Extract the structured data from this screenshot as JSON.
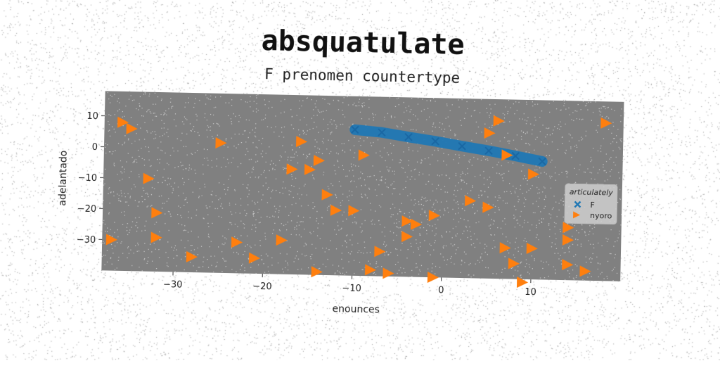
{
  "chart_data": {
    "type": "scatter",
    "title": "absquatulate",
    "subtitle": "F prenomen countertype",
    "xlabel": "enounces",
    "ylabel": "adelantado",
    "xlim": [
      -38,
      20
    ],
    "ylim": [
      -40,
      18
    ],
    "xticks": [
      -30,
      -20,
      -10,
      0,
      10
    ],
    "yticks": [
      10,
      0,
      -10,
      -20,
      -30
    ],
    "grid": false,
    "legend_position": "right",
    "legend_title": "articulately",
    "colors": {
      "F": "#1f77b4",
      "nyoro": "#ff7f0e",
      "plot_bg": "#808080"
    },
    "series": [
      {
        "name": "F",
        "marker": "x",
        "points": [
          [
            -10,
            7.2
          ],
          [
            -7,
            6.5
          ],
          [
            -4,
            5.2
          ],
          [
            -1,
            4.0
          ],
          [
            2,
            2.6
          ],
          [
            5,
            1.3
          ],
          [
            8,
            -0.2
          ],
          [
            11,
            -1.8
          ]
        ]
      },
      {
        "name": "nyoro",
        "marker": "triangle-right",
        "points": [
          [
            -36,
            8
          ],
          [
            -35,
            6
          ],
          [
            -25,
            2
          ],
          [
            -16,
            3
          ],
          [
            -17,
            -6
          ],
          [
            -15,
            -6
          ],
          [
            -14,
            -3
          ],
          [
            -9,
            -1
          ],
          [
            6,
            11
          ],
          [
            5,
            7
          ],
          [
            7,
            0
          ],
          [
            10,
            -6
          ],
          [
            18,
            11
          ],
          [
            -33,
            -10
          ],
          [
            -13,
            -14
          ],
          [
            -12,
            -19
          ],
          [
            -10,
            -19
          ],
          [
            -32,
            -21
          ],
          [
            -4,
            -22
          ],
          [
            -3,
            -23
          ],
          [
            -1,
            -20
          ],
          [
            3,
            -15
          ],
          [
            5,
            -17
          ],
          [
            -4,
            -27
          ],
          [
            -32,
            -29
          ],
          [
            -37,
            -30
          ],
          [
            -23,
            -30
          ],
          [
            -18,
            -29
          ],
          [
            -7,
            -32
          ],
          [
            -21,
            -35
          ],
          [
            -28,
            -35
          ],
          [
            -14,
            -39
          ],
          [
            -8,
            -38
          ],
          [
            -6,
            -39
          ],
          [
            -1,
            -40
          ],
          [
            7,
            -30
          ],
          [
            10,
            -30
          ],
          [
            8,
            -35
          ],
          [
            9,
            -41
          ],
          [
            14,
            -23
          ],
          [
            14,
            -27
          ],
          [
            14,
            -35
          ],
          [
            16,
            -37
          ]
        ]
      }
    ]
  }
}
